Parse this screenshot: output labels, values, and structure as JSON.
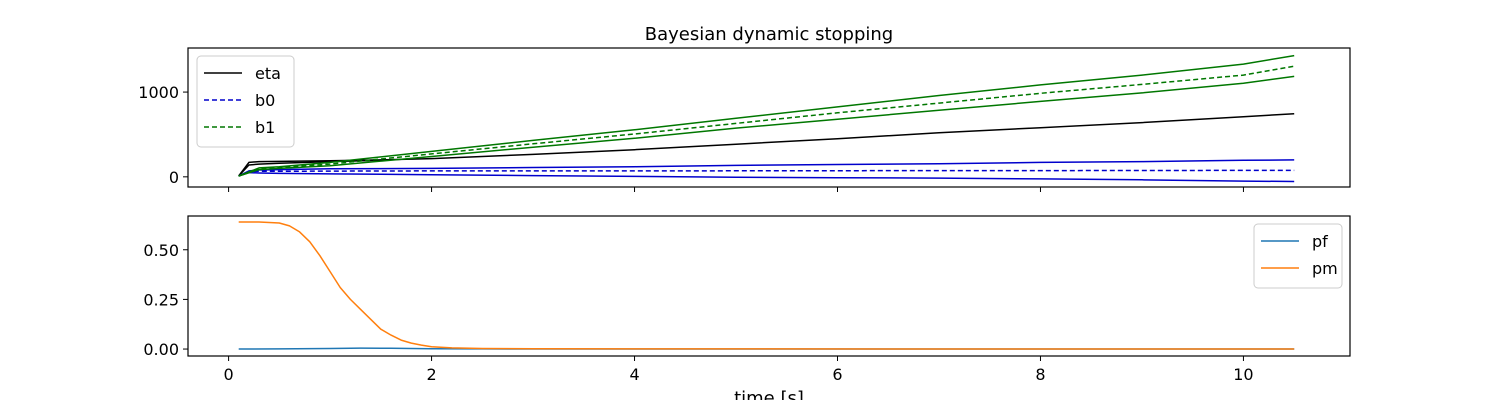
{
  "chart_data": [
    {
      "type": "line",
      "title": "Bayesian dynamic stopping",
      "xlabel": "",
      "ylabel": "",
      "xlim": [
        -0.4,
        11.05
      ],
      "ylim": [
        -120,
        1520
      ],
      "xticks": [
        0,
        2,
        4,
        6,
        8,
        10
      ],
      "show_xtick_labels": false,
      "yticks": [
        0,
        1000
      ],
      "ytick_labels": [
        "0",
        "1000"
      ],
      "grid": false,
      "legend": "top-left",
      "series": [
        {
          "name": "eta",
          "legend": true,
          "color": "#000000",
          "style": "solid",
          "x": [
            0.1,
            0.2,
            0.3,
            0.5,
            1,
            1.5,
            2,
            3,
            4,
            5,
            6,
            7,
            8,
            9,
            10,
            10.5
          ],
          "y": [
            10,
            170,
            180,
            182,
            190,
            200,
            215,
            265,
            320,
            385,
            450,
            520,
            580,
            640,
            710,
            745
          ]
        },
        {
          "name": "eta_upper",
          "legend": false,
          "color": "#000000",
          "style": "solid",
          "x": [
            0.1,
            0.2,
            0.3,
            0.5,
            1,
            1.5
          ],
          "y": [
            10,
            140,
            150,
            160,
            180,
            195
          ]
        },
        {
          "name": "b0",
          "legend": true,
          "color": "#0000cc",
          "style": "dashed",
          "x": [
            0.1,
            0.2,
            0.3,
            0.5,
            1,
            2,
            4,
            6,
            8,
            10,
            10.5
          ],
          "y": [
            10,
            60,
            65,
            65,
            68,
            70,
            70,
            72,
            74,
            76,
            76
          ]
        },
        {
          "name": "b0_upper",
          "legend": false,
          "color": "#0000cc",
          "style": "solid",
          "x": [
            0.1,
            0.2,
            0.3,
            0.5,
            1,
            2,
            3,
            4,
            5,
            6,
            7,
            8,
            9,
            10,
            10.5
          ],
          "y": [
            10,
            70,
            80,
            85,
            95,
            100,
            110,
            120,
            135,
            145,
            155,
            170,
            180,
            195,
            200
          ]
        },
        {
          "name": "b0_lower",
          "legend": false,
          "color": "#0000cc",
          "style": "solid",
          "x": [
            0.1,
            0.2,
            0.3,
            0.5,
            1,
            2,
            3,
            4,
            5,
            6,
            7,
            8,
            9,
            10,
            10.5
          ],
          "y": [
            10,
            50,
            45,
            40,
            35,
            25,
            15,
            5,
            -5,
            -10,
            -15,
            -25,
            -35,
            -50,
            -55
          ]
        },
        {
          "name": "b1",
          "legend": true,
          "color": "#007700",
          "style": "dashed",
          "x": [
            0.1,
            0.3,
            0.5,
            1,
            2,
            3,
            4,
            5,
            6,
            7,
            8,
            9,
            10,
            10.5
          ],
          "y": [
            10,
            95,
            110,
            150,
            270,
            390,
            505,
            630,
            755,
            870,
            985,
            1090,
            1200,
            1305
          ]
        },
        {
          "name": "b1_upper",
          "legend": false,
          "color": "#007700",
          "style": "solid",
          "x": [
            0.1,
            0.3,
            0.5,
            1,
            2,
            3,
            4,
            5,
            6,
            7,
            8,
            9,
            10,
            10.5
          ],
          "y": [
            10,
            105,
            120,
            170,
            300,
            430,
            555,
            690,
            825,
            960,
            1085,
            1200,
            1330,
            1430
          ]
        },
        {
          "name": "b1_lower",
          "legend": false,
          "color": "#007700",
          "style": "solid",
          "x": [
            0.1,
            0.3,
            0.5,
            1,
            2,
            3,
            4,
            5,
            6,
            7,
            8,
            9,
            10,
            10.5
          ],
          "y": [
            10,
            85,
            100,
            130,
            240,
            350,
            455,
            575,
            680,
            785,
            890,
            990,
            1105,
            1185
          ]
        }
      ]
    },
    {
      "type": "line",
      "title": "",
      "xlabel": "time [s]",
      "ylabel": "",
      "xlim": [
        -0.4,
        11.05
      ],
      "ylim": [
        -0.035,
        0.67
      ],
      "xticks": [
        0,
        2,
        4,
        6,
        8,
        10
      ],
      "xtick_labels": [
        "0",
        "2",
        "4",
        "6",
        "8",
        "10"
      ],
      "yticks": [
        0,
        0.25,
        0.5
      ],
      "ytick_labels": [
        "0.00",
        "0.25",
        "0.50"
      ],
      "grid": false,
      "legend": "top-right",
      "series": [
        {
          "name": "pf",
          "legend": true,
          "color": "#1f77b4",
          "style": "solid",
          "x": [
            0.1,
            0.5,
            1.0,
            1.3,
            1.6,
            2.0,
            2.5,
            3,
            10.5
          ],
          "y": [
            0.0,
            0.001,
            0.003,
            0.005,
            0.004,
            0.002,
            0.001,
            0.0,
            0.0
          ]
        },
        {
          "name": "pm",
          "legend": true,
          "color": "#ff7f0e",
          "style": "solid",
          "x": [
            0.1,
            0.3,
            0.5,
            0.6,
            0.7,
            0.8,
            0.9,
            1.0,
            1.1,
            1.2,
            1.3,
            1.4,
            1.5,
            1.6,
            1.7,
            1.8,
            1.9,
            2.0,
            2.2,
            2.5,
            3.0,
            4,
            10.5
          ],
          "y": [
            0.64,
            0.64,
            0.635,
            0.62,
            0.59,
            0.54,
            0.47,
            0.39,
            0.31,
            0.25,
            0.2,
            0.15,
            0.1,
            0.07,
            0.045,
            0.03,
            0.02,
            0.012,
            0.006,
            0.003,
            0.002,
            0.001,
            0.0
          ]
        }
      ]
    }
  ]
}
